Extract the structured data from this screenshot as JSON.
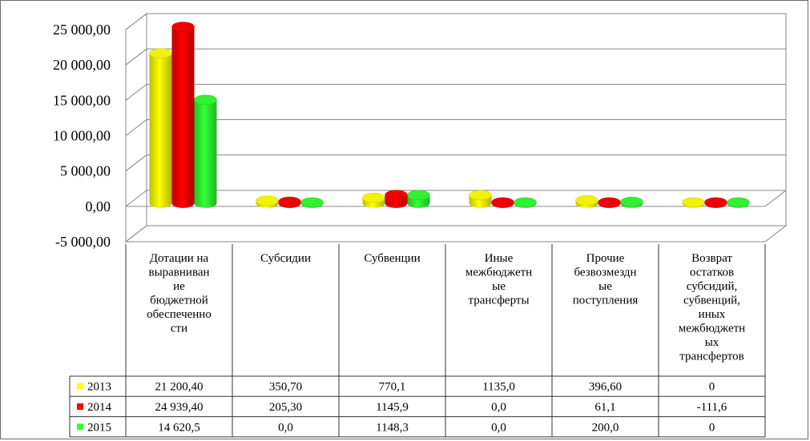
{
  "chart_data": {
    "type": "bar",
    "title": "",
    "xlabel": "",
    "ylabel": "",
    "ylim": [
      -5000,
      25000
    ],
    "y_ticks": [
      "-5 000,00",
      "0,00",
      "5 000,00",
      "10 000,00",
      "15 000,00",
      "20 000,00",
      "25 000,00"
    ],
    "grid": true,
    "style": "3d-cylinder",
    "legend": "data-table",
    "categories": [
      [
        "Дотации на",
        "выравниван",
        "ие",
        "бюджетной",
        "обеспеченно",
        "сти"
      ],
      [
        "Субсидии"
      ],
      [
        "Субвенции"
      ],
      [
        "Иные",
        "межбюджетн",
        "ые",
        "трансферты"
      ],
      [
        "Прочие",
        "безвозмездн",
        "ые",
        "поступления"
      ],
      [
        "Возврат",
        "остатков",
        "субсидий,",
        "субвенций,",
        "иных",
        "межбюджетн",
        "ых",
        "трансфертов"
      ]
    ],
    "series": [
      {
        "name": "2013",
        "color": "#ffff00",
        "values": [
          21200.4,
          350.7,
          770.1,
          1135.0,
          396.6,
          0
        ],
        "labels": [
          "21 200,40",
          "350,70",
          "770,1",
          "1135,0",
          "396,60",
          "0"
        ]
      },
      {
        "name": "2014",
        "color": "#ff0000",
        "values": [
          24939.4,
          205.3,
          1145.9,
          0.0,
          61.1,
          -111.6
        ],
        "labels": [
          "24 939,40",
          "205,30",
          "1145,9",
          "0,0",
          "61,1",
          "-111,6"
        ]
      },
      {
        "name": "2015",
        "color": "#33ff33",
        "values": [
          14620.5,
          0.0,
          1148.3,
          0.0,
          200.0,
          0
        ],
        "labels": [
          "14 620,5",
          "0,0",
          "1148,3",
          "0,0",
          "200,0",
          "0"
        ]
      }
    ]
  }
}
